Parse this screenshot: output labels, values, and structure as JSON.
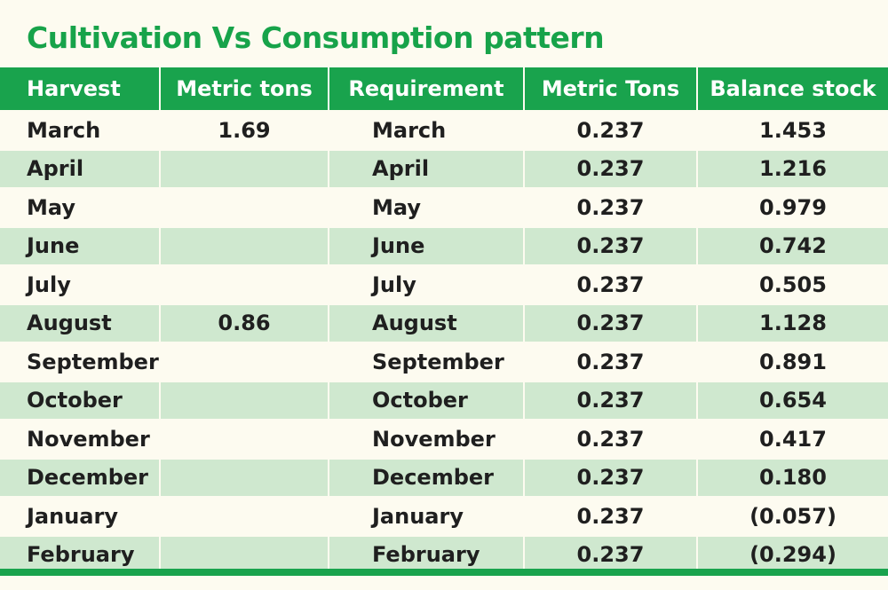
{
  "title": "Cultivation Vs Consumption pattern",
  "colors": {
    "accent": "#19a34d",
    "title": "#17a34a",
    "stripe": "#cfe8cf",
    "background": "#fdfbf0"
  },
  "table": {
    "headers": [
      "Harvest",
      "Metric tons",
      "Requirement",
      "Metric Tons",
      "Balance stock"
    ],
    "rows": [
      {
        "harvest": "March",
        "metric_tons": "1.69",
        "requirement": "March",
        "req_tons": "0.237",
        "balance": "1.453"
      },
      {
        "harvest": "April",
        "metric_tons": "",
        "requirement": "April",
        "req_tons": "0.237",
        "balance": "1.216"
      },
      {
        "harvest": "May",
        "metric_tons": "",
        "requirement": "May",
        "req_tons": "0.237",
        "balance": "0.979"
      },
      {
        "harvest": "June",
        "metric_tons": "",
        "requirement": "June",
        "req_tons": "0.237",
        "balance": "0.742"
      },
      {
        "harvest": "July",
        "metric_tons": "",
        "requirement": "July",
        "req_tons": "0.237",
        "balance": "0.505"
      },
      {
        "harvest": "August",
        "metric_tons": "0.86",
        "requirement": "August",
        "req_tons": "0.237",
        "balance": "1.128"
      },
      {
        "harvest": "September",
        "metric_tons": "",
        "requirement": "September",
        "req_tons": "0.237",
        "balance": "0.891"
      },
      {
        "harvest": "October",
        "metric_tons": "",
        "requirement": "October",
        "req_tons": "0.237",
        "balance": "0.654"
      },
      {
        "harvest": "November",
        "metric_tons": "",
        "requirement": "November",
        "req_tons": "0.237",
        "balance": "0.417"
      },
      {
        "harvest": "December",
        "metric_tons": "",
        "requirement": "December",
        "req_tons": "0.237",
        "balance": "0.180"
      },
      {
        "harvest": "January",
        "metric_tons": "",
        "requirement": "January",
        "req_tons": "0.237",
        "balance": "(0.057)"
      },
      {
        "harvest": "February",
        "metric_tons": "",
        "requirement": "February",
        "req_tons": "0.237",
        "balance": "(0.294)"
      }
    ]
  }
}
